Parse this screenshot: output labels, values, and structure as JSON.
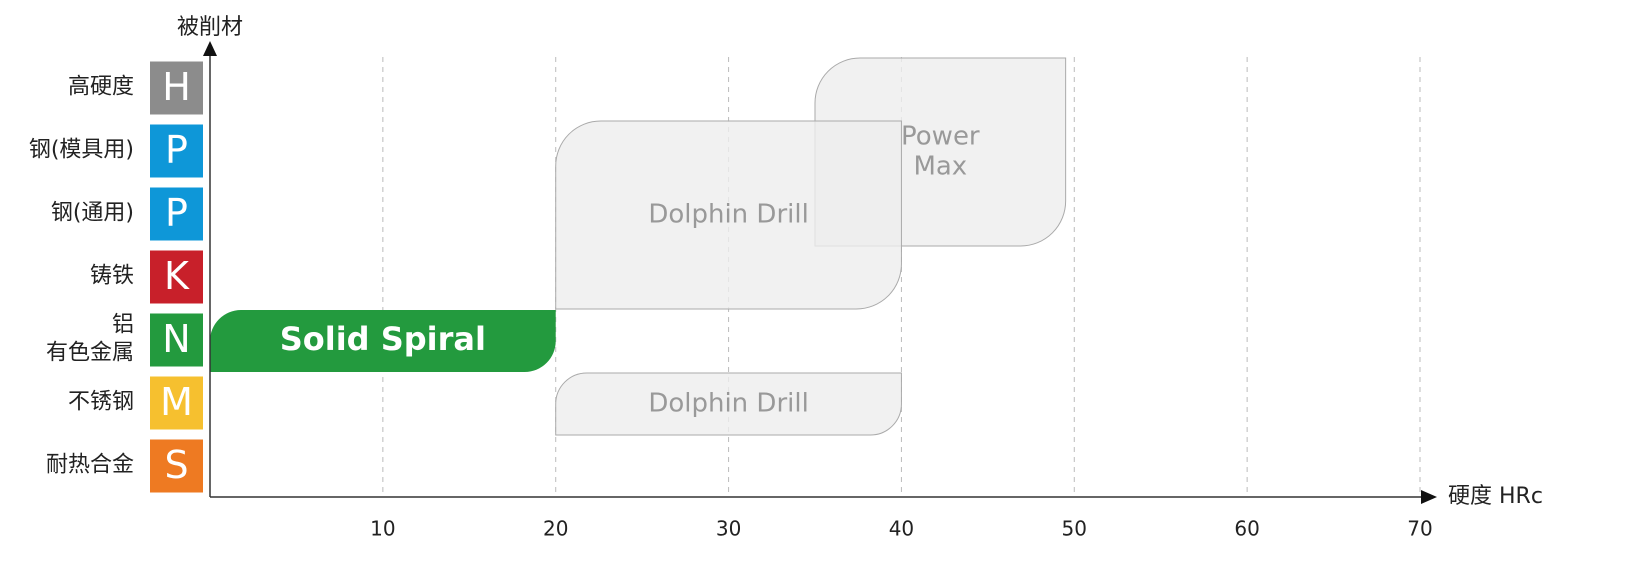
{
  "chart_data": {
    "type": "range",
    "y_title": "被削材",
    "x_title": "硬度 HRc",
    "xlim": [
      0,
      70
    ],
    "xticks": [
      10,
      20,
      30,
      40,
      50,
      60,
      70
    ],
    "grid": true,
    "categories": [
      {
        "label": [
          "高硬度"
        ],
        "code": "H",
        "color": "#8c8c8c"
      },
      {
        "label": [
          "钢(模具用)"
        ],
        "code": "P",
        "color": "#0e97d8"
      },
      {
        "label": [
          "钢(通用)"
        ],
        "code": "P",
        "color": "#0e97d8"
      },
      {
        "label": [
          "铸铁"
        ],
        "code": "K",
        "color": "#c8202a"
      },
      {
        "label": [
          "铝",
          "有色金属"
        ],
        "code": "N",
        "color": "#239a3e"
      },
      {
        "label": [
          "不锈钢"
        ],
        "code": "M",
        "color": "#f6c02f"
      },
      {
        "label": [
          "耐热合金"
        ],
        "code": "S",
        "color": "#ee7a22"
      }
    ],
    "bars": [
      {
        "label": [
          "Power",
          "Max"
        ],
        "start": 35,
        "end": 49.5,
        "rows": [
          0,
          2
        ],
        "color": "#eeeeee",
        "text_color": "#999999"
      },
      {
        "label": [
          "Dolphin Drill"
        ],
        "start": 20,
        "end": 40,
        "rows": [
          1,
          3
        ],
        "color": "#eeeeee",
        "text_color": "#999999"
      },
      {
        "label": [
          "Solid Spiral"
        ],
        "start": 0,
        "end": 20,
        "rows": [
          4,
          4
        ],
        "color": "#239a3e",
        "text_color": "#ffffff"
      },
      {
        "label": [
          "Dolphin Drill"
        ],
        "start": 20,
        "end": 40,
        "rows": [
          5,
          5
        ],
        "color": "#eeeeee",
        "text_color": "#999999"
      }
    ]
  }
}
